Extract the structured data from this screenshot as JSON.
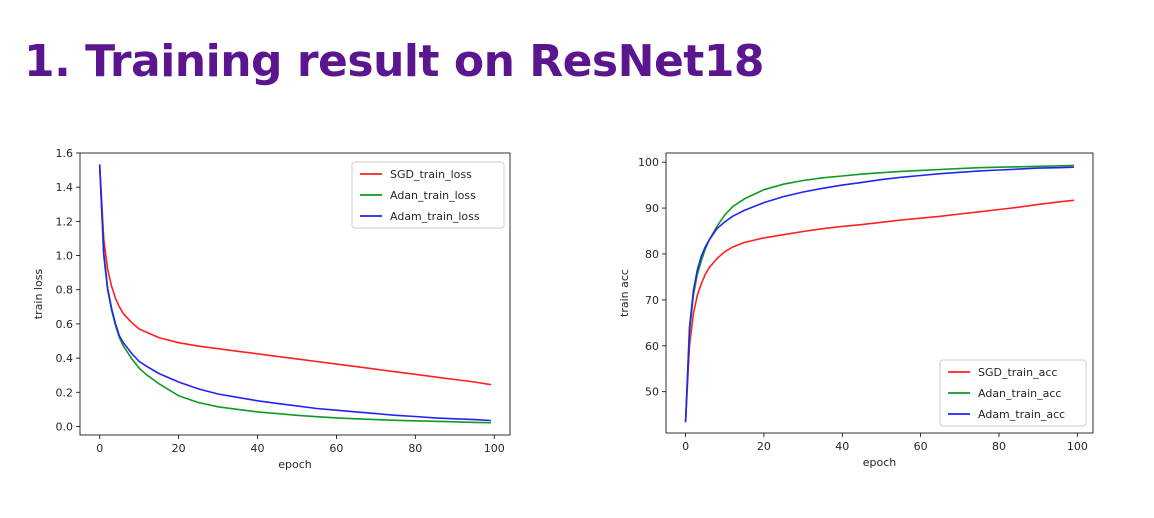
{
  "slide": {
    "title": "1.  Training result on ResNet18"
  },
  "colors": {
    "title": "#5b168f",
    "SGD": "#ff2020",
    "Adan": "#0f9a22",
    "Adam": "#2323f5"
  },
  "chart_data": [
    {
      "type": "line",
      "xlabel": "epoch",
      "ylabel": "train loss",
      "xlim": [
        -5,
        104
      ],
      "ylim": [
        -0.05,
        1.6
      ],
      "xticks": [
        "0",
        "20",
        "40",
        "60",
        "80",
        "100"
      ],
      "yticks": [
        "0.0",
        "0.2",
        "0.4",
        "0.6",
        "0.8",
        "1.0",
        "1.2",
        "1.4",
        "1.6"
      ],
      "legend_position": "top-right",
      "grid": false,
      "x": [
        0,
        1,
        2,
        3,
        4,
        5,
        6,
        8,
        10,
        12,
        15,
        20,
        25,
        30,
        35,
        40,
        45,
        50,
        55,
        60,
        65,
        70,
        75,
        80,
        85,
        90,
        95,
        99
      ],
      "series": [
        {
          "name": "SGD_train_loss",
          "color": "#ff2020",
          "values": [
            1.53,
            1.1,
            0.92,
            0.82,
            0.75,
            0.7,
            0.66,
            0.61,
            0.57,
            0.55,
            0.52,
            0.49,
            0.47,
            0.455,
            0.44,
            0.425,
            0.41,
            0.395,
            0.38,
            0.365,
            0.35,
            0.335,
            0.32,
            0.305,
            0.29,
            0.275,
            0.26,
            0.245
          ]
        },
        {
          "name": "Adan_train_loss",
          "color": "#0f9a22",
          "values": [
            1.53,
            1.0,
            0.8,
            0.68,
            0.59,
            0.52,
            0.47,
            0.4,
            0.34,
            0.3,
            0.25,
            0.18,
            0.14,
            0.115,
            0.1,
            0.085,
            0.075,
            0.065,
            0.057,
            0.05,
            0.045,
            0.04,
            0.036,
            0.033,
            0.03,
            0.027,
            0.024,
            0.022
          ]
        },
        {
          "name": "Adam_train_loss",
          "color": "#2323f5",
          "values": [
            1.53,
            1.02,
            0.81,
            0.69,
            0.6,
            0.53,
            0.49,
            0.43,
            0.38,
            0.35,
            0.31,
            0.26,
            0.22,
            0.19,
            0.17,
            0.15,
            0.135,
            0.12,
            0.105,
            0.095,
            0.085,
            0.075,
            0.065,
            0.058,
            0.05,
            0.045,
            0.04,
            0.035
          ]
        }
      ]
    },
    {
      "type": "line",
      "xlabel": "epoch",
      "ylabel": "train acc",
      "xlim": [
        -5,
        104
      ],
      "ylim": [
        41,
        102
      ],
      "xticks": [
        "0",
        "20",
        "40",
        "60",
        "80",
        "100"
      ],
      "yticks": [
        "50",
        "60",
        "70",
        "80",
        "90",
        "100"
      ],
      "legend_position": "bottom-right",
      "grid": false,
      "x": [
        0,
        1,
        2,
        3,
        4,
        5,
        6,
        8,
        10,
        12,
        15,
        20,
        25,
        30,
        35,
        40,
        45,
        50,
        55,
        60,
        65,
        70,
        75,
        80,
        85,
        90,
        95,
        99
      ],
      "series": [
        {
          "name": "SGD_train_acc",
          "color": "#ff2020",
          "values": [
            43.5,
            60,
            67,
            71,
            73.5,
            75.5,
            77,
            79,
            80.5,
            81.5,
            82.5,
            83.5,
            84.2,
            84.9,
            85.5,
            86,
            86.4,
            86.9,
            87.4,
            87.8,
            88.2,
            88.7,
            89.2,
            89.7,
            90.2,
            90.8,
            91.3,
            91.7
          ]
        },
        {
          "name": "Adan_train_acc",
          "color": "#0f9a22",
          "values": [
            43.5,
            63,
            71,
            75.5,
            78.5,
            81,
            83,
            86,
            88.5,
            90.3,
            92,
            94,
            95.2,
            96,
            96.6,
            97,
            97.4,
            97.7,
            98,
            98.2,
            98.4,
            98.6,
            98.8,
            98.9,
            99,
            99.1,
            99.2,
            99.3
          ]
        },
        {
          "name": "Adam_train_acc",
          "color": "#2323f5",
          "values": [
            43.5,
            64,
            72,
            76.5,
            79.5,
            81.5,
            83,
            85.5,
            87,
            88.2,
            89.5,
            91.2,
            92.5,
            93.5,
            94.3,
            95,
            95.6,
            96.2,
            96.7,
            97.1,
            97.5,
            97.8,
            98.1,
            98.3,
            98.5,
            98.7,
            98.8,
            98.9
          ]
        }
      ]
    }
  ]
}
